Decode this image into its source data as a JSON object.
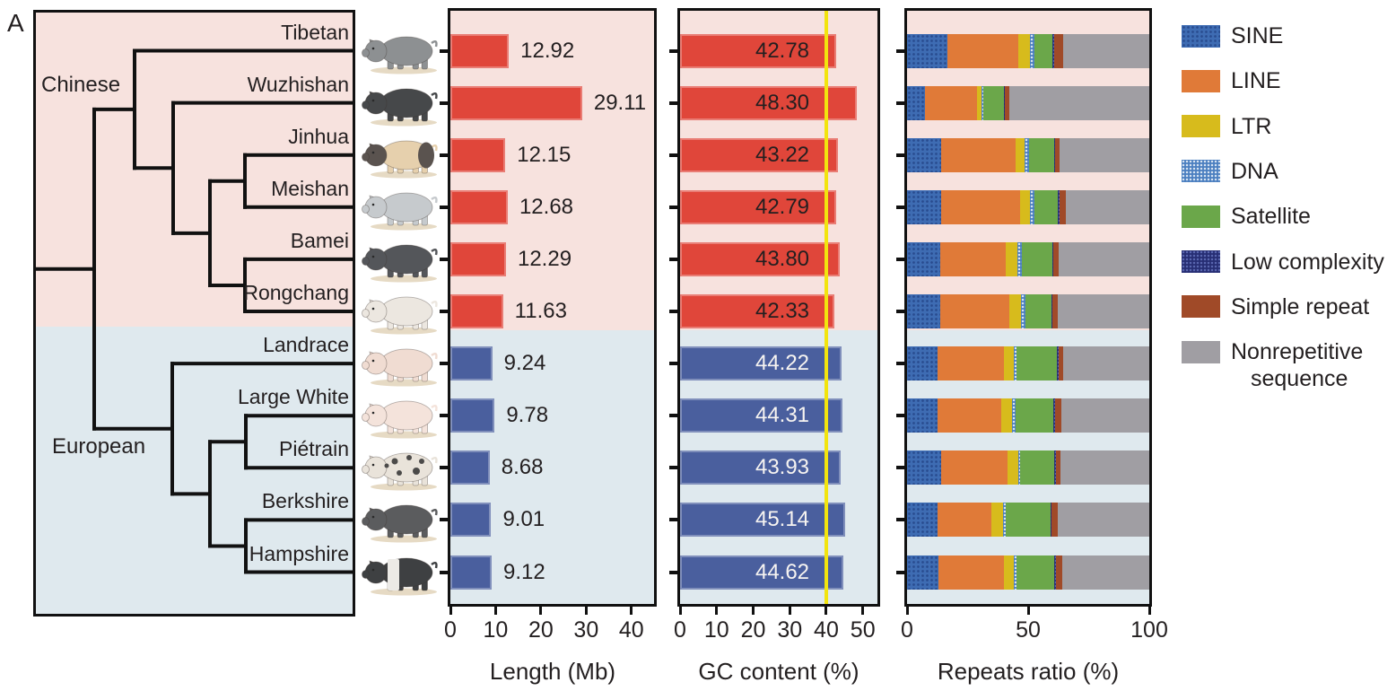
{
  "figure_label": "A",
  "palette": {
    "chinese_bar": "#e0463a",
    "european_bar": "#4a5f9e",
    "chinese_bg": "#f7e2de",
    "european_bg": "#dfe9ee",
    "frame": "#111111",
    "text": "#231f20",
    "gc_value_text_chinese": "#231f20",
    "gc_value_text_european": "#f7f4f1",
    "gc_reference_line": "#f2e40e",
    "pig_shadow": "#e6dac4"
  },
  "tree": {
    "groups": [
      {
        "label": "Chinese",
        "members": [
          "Tibetan",
          "Wuzhishan",
          "Jinhua",
          "Meishan",
          "Bamei",
          "Rongchang"
        ]
      },
      {
        "label": "European",
        "members": [
          "Landrace",
          "Large White",
          "Piétrain",
          "Berkshire",
          "Hampshire"
        ]
      }
    ],
    "topology": "((Tibetan,(Wuzhishan,((Jinhua,Meishan),(Bamei,Rongchang)))),(Landrace,((Large White,Piétrain),(Berkshire,Hampshire))))"
  },
  "breeds": [
    {
      "name": "Tibetan",
      "group": "chinese",
      "pig": {
        "body": "#8d9092",
        "pattern": "none"
      }
    },
    {
      "name": "Wuzhishan",
      "group": "chinese",
      "pig": {
        "body": "#46484a",
        "pattern": "none"
      }
    },
    {
      "name": "Jinhua",
      "group": "chinese",
      "pig": {
        "body": "#e6d0ad",
        "pattern": "two-end-black",
        "accent": "#5a534f"
      }
    },
    {
      "name": "Meishan",
      "group": "chinese",
      "pig": {
        "body": "#c6cacd",
        "pattern": "none"
      }
    },
    {
      "name": "Bamei",
      "group": "chinese",
      "pig": {
        "body": "#54565a",
        "pattern": "none"
      }
    },
    {
      "name": "Rongchang",
      "group": "chinese",
      "pig": {
        "body": "#ece7e0",
        "pattern": "none"
      }
    },
    {
      "name": "Landrace",
      "group": "european",
      "pig": {
        "body": "#f0dcd2",
        "pattern": "none"
      }
    },
    {
      "name": "Large White",
      "group": "european",
      "pig": {
        "body": "#f4e3db",
        "pattern": "none"
      }
    },
    {
      "name": "Piétrain",
      "group": "european",
      "pig": {
        "body": "#e9e3da",
        "pattern": "spots",
        "accent": "#4b4a49"
      }
    },
    {
      "name": "Berkshire",
      "group": "european",
      "pig": {
        "body": "#5b5c5e",
        "pattern": "none"
      }
    },
    {
      "name": "Hampshire",
      "group": "european",
      "pig": {
        "body": "#3e4042",
        "pattern": "belt",
        "accent": "#eceae6"
      }
    }
  ],
  "chart_data": [
    {
      "type": "bar",
      "orientation": "horizontal",
      "xlabel": "Length (Mb)",
      "categories": [
        "Tibetan",
        "Wuzhishan",
        "Jinhua",
        "Meishan",
        "Bamei",
        "Rongchang",
        "Landrace",
        "Large White",
        "Piétrain",
        "Berkshire",
        "Hampshire"
      ],
      "values": [
        12.92,
        29.11,
        12.15,
        12.68,
        12.29,
        11.63,
        9.24,
        9.78,
        8.68,
        9.01,
        9.12
      ],
      "xlim": [
        0,
        45
      ],
      "xticks": [
        0,
        10,
        20,
        30,
        40
      ],
      "grid": false
    },
    {
      "type": "bar",
      "orientation": "horizontal",
      "xlabel": "GC content (%)",
      "categories": [
        "Tibetan",
        "Wuzhishan",
        "Jinhua",
        "Meishan",
        "Bamei",
        "Rongchang",
        "Landrace",
        "Large White",
        "Piétrain",
        "Berkshire",
        "Hampshire"
      ],
      "values": [
        42.78,
        48.3,
        43.22,
        42.79,
        43.8,
        42.33,
        44.22,
        44.31,
        43.93,
        45.14,
        44.62
      ],
      "xlim": [
        0,
        54
      ],
      "xticks": [
        0,
        10,
        20,
        30,
        40,
        50
      ],
      "reference_line_x": 40,
      "grid": false
    },
    {
      "type": "stacked-bar",
      "orientation": "horizontal",
      "xlabel": "Repeats ratio (%)",
      "categories": [
        "Tibetan",
        "Wuzhishan",
        "Jinhua",
        "Meishan",
        "Bamei",
        "Rongchang",
        "Landrace",
        "Large White",
        "Piétrain",
        "Berkshire",
        "Hampshire"
      ],
      "xlim": [
        0,
        100
      ],
      "xticks": [
        0,
        50,
        100
      ],
      "grid": false,
      "series": [
        {
          "name": "SINE",
          "color": "#3e6cb3",
          "texture": "sine",
          "values": [
            16.7,
            7.4,
            14.2,
            14.2,
            13.6,
            13.8,
            12.7,
            12.7,
            14.0,
            12.6,
            13.0
          ]
        },
        {
          "name": "LINE",
          "color": "#e07a38",
          "values": [
            29.3,
            21.4,
            30.5,
            32.5,
            27.1,
            28.5,
            27.2,
            26.2,
            27.6,
            22.3,
            26.9
          ]
        },
        {
          "name": "LTR",
          "color": "#d7bb1c",
          "values": [
            4.6,
            1.9,
            3.8,
            4.2,
            4.7,
            4.6,
            4.2,
            4.3,
            4.3,
            4.6,
            4.2
          ]
        },
        {
          "name": "DNA",
          "color": "#4c7fc0",
          "texture": "dna",
          "values": [
            1.9,
            0.9,
            1.9,
            1.8,
            1.9,
            1.9,
            1.0,
            1.6,
            0.8,
            1.2,
            1.0
          ]
        },
        {
          "name": "Satellite",
          "color": "#6ba74a",
          "values": [
            7.5,
            8.3,
            10.3,
            9.6,
            12.6,
            10.8,
            16.9,
            15.7,
            14.2,
            18.6,
            15.8
          ]
        },
        {
          "name": "Low complexity",
          "color": "#272e74",
          "texture": "low",
          "values": [
            0.7,
            0.6,
            0.3,
            0.7,
            0.6,
            0.4,
            0.6,
            0.6,
            0.5,
            0.3,
            0.5
          ]
        },
        {
          "name": "Simple repeat",
          "color": "#a04a28",
          "values": [
            3.6,
            1.9,
            2.1,
            2.4,
            2.2,
            2.3,
            2.0,
            2.5,
            1.9,
            2.5,
            2.6
          ]
        },
        {
          "name": "Nonrepetitive sequence",
          "color": "#a09ea3",
          "values": [
            35.7,
            57.6,
            36.9,
            34.6,
            37.3,
            37.7,
            35.4,
            36.4,
            36.7,
            37.9,
            36.0
          ]
        }
      ]
    }
  ],
  "legend": [
    {
      "label": "SINE",
      "color": "#3e6cb3",
      "texture": "sine"
    },
    {
      "label": "LINE",
      "color": "#e07a38"
    },
    {
      "label": "LTR",
      "color": "#d7bb1c"
    },
    {
      "label": "DNA",
      "color": "#4c7fc0",
      "texture": "dna"
    },
    {
      "label": "Satellite",
      "color": "#6ba74a"
    },
    {
      "label": "Low complexity",
      "color": "#272e74",
      "texture": "low"
    },
    {
      "label": "Simple repeat",
      "color": "#a04a28"
    },
    {
      "label": "Nonrepetitive\nsequence",
      "color": "#a09ea3"
    }
  ]
}
